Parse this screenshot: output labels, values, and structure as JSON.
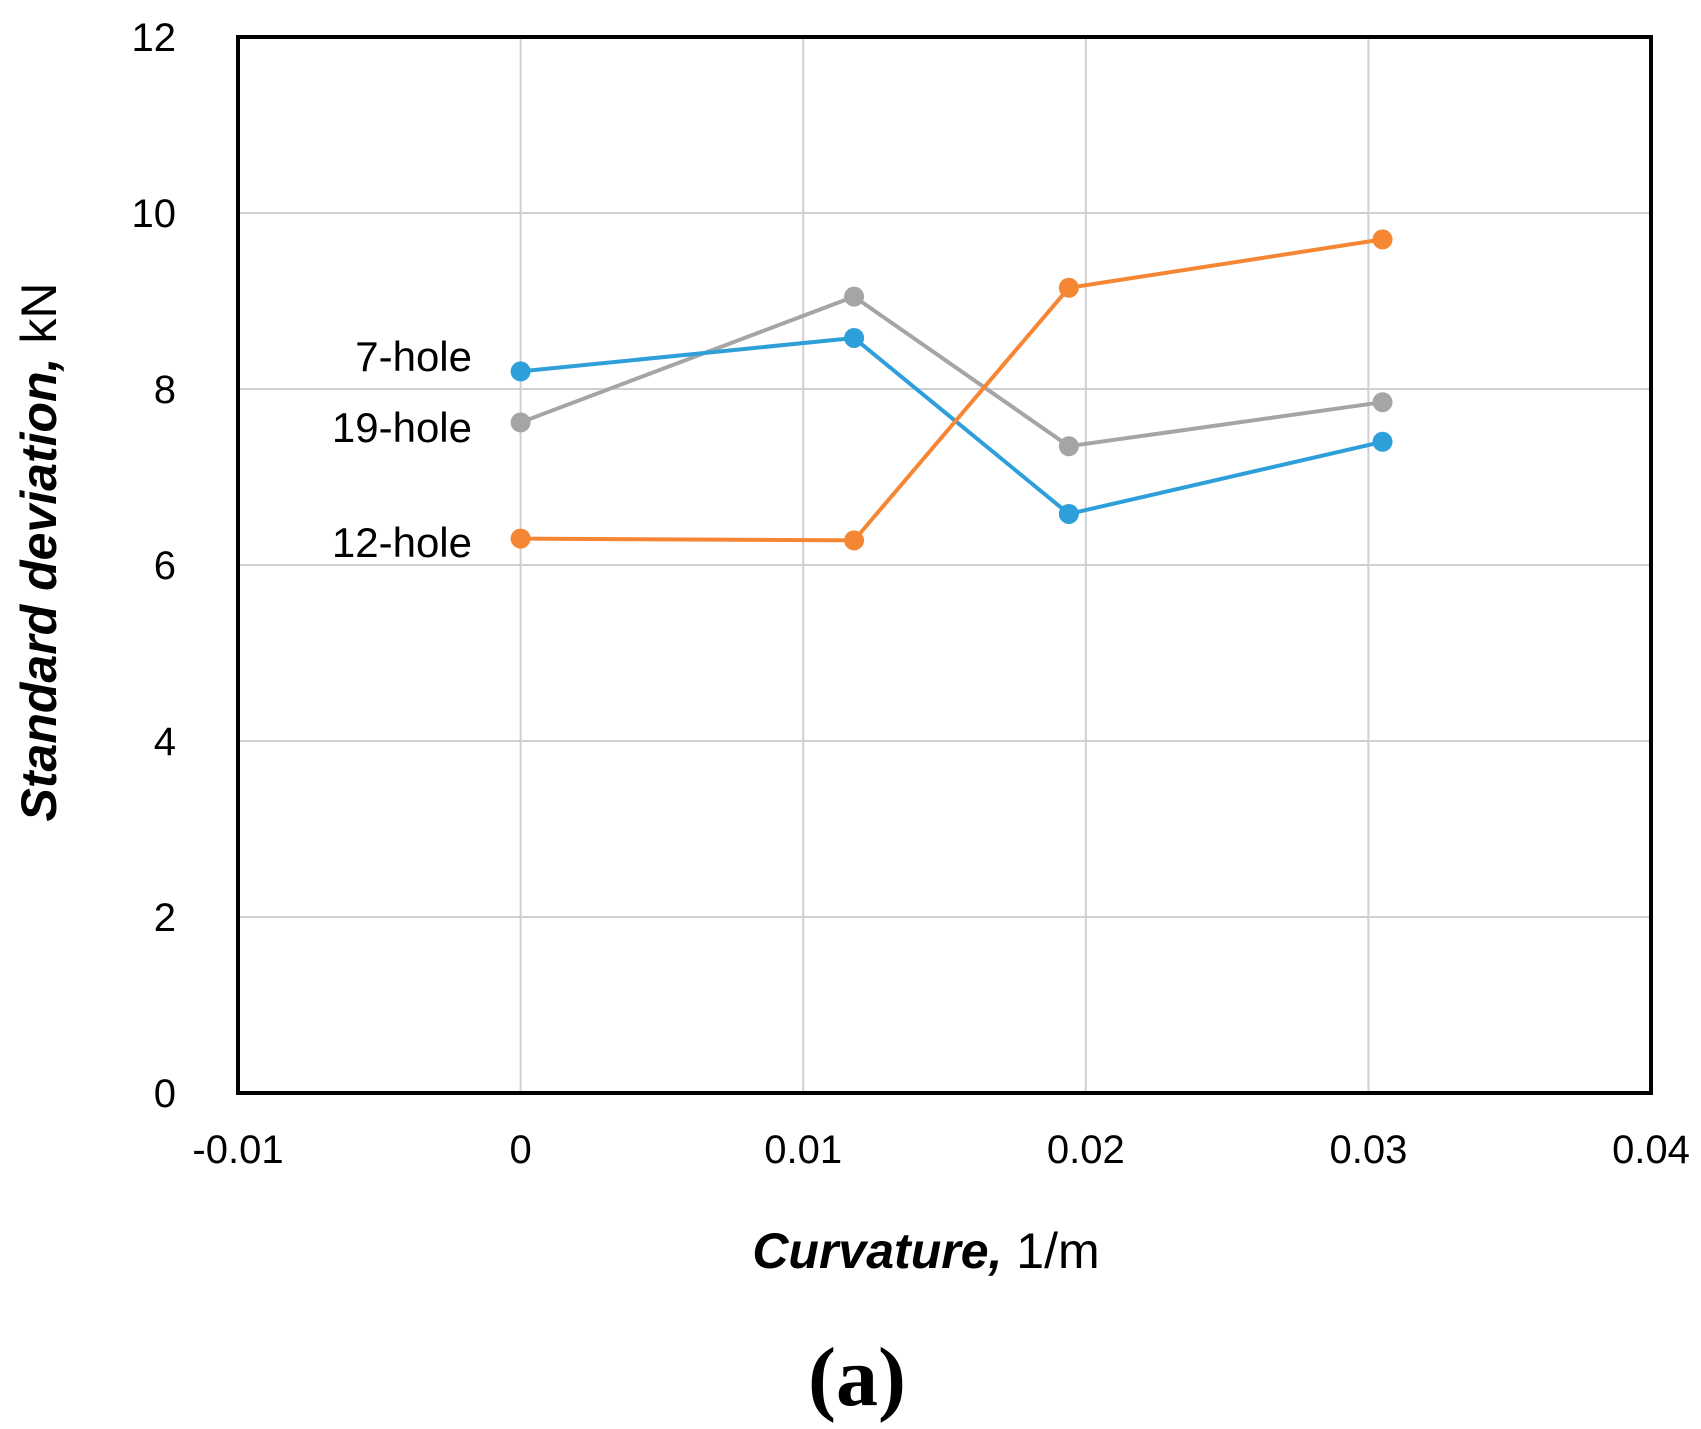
{
  "chart_data": {
    "type": "line",
    "xlabel_em": "Curvature,",
    "xlabel_unit": " 1/m",
    "ylabel_em": "Standard deviation,",
    "ylabel_unit": " kN",
    "xlim": [
      -0.01,
      0.04
    ],
    "ylim": [
      0,
      12
    ],
    "xticks": [
      -0.01,
      0,
      0.01,
      0.02,
      0.03,
      0.04
    ],
    "xtick_labels": [
      "-0.01",
      "0",
      "0.01",
      "0.02",
      "0.03",
      "0.04"
    ],
    "yticks": [
      0,
      2,
      4,
      6,
      8,
      10,
      12
    ],
    "ytick_labels": [
      "0",
      "2",
      "4",
      "6",
      "8",
      "10",
      "12"
    ],
    "grid": true,
    "series": [
      {
        "name": "19-hole",
        "color": "#a5a5a5",
        "x": [
          0,
          0.0118,
          0.0194,
          0.0305
        ],
        "y": [
          7.62,
          9.05,
          7.35,
          7.85
        ]
      },
      {
        "name": "7-hole",
        "color": "#2e9fd9",
        "x": [
          0,
          0.0118,
          0.0194,
          0.0305
        ],
        "y": [
          8.2,
          8.58,
          6.58,
          7.4
        ]
      },
      {
        "name": "12-hole",
        "color": "#f58634",
        "x": [
          0,
          0.0118,
          0.0194,
          0.0305
        ],
        "y": [
          6.3,
          6.28,
          9.15,
          9.7
        ]
      }
    ],
    "annotations": [
      "7-hole",
      "19-hole",
      "12-hole"
    ]
  },
  "panel_label": "(a)"
}
